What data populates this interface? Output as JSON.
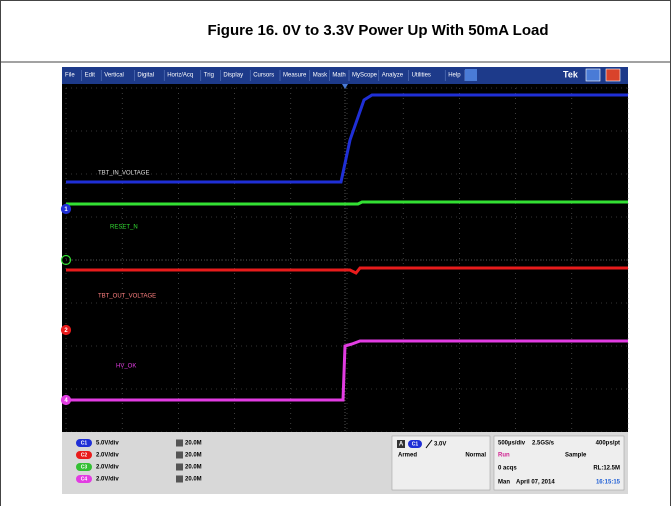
{
  "figure": {
    "title": "Figure 16. 0V to 3.3V Power Up With 50mA Load"
  },
  "menu": {
    "items": [
      "File",
      "Edit",
      "Vertical",
      "Digital",
      "Horiz/Acq",
      "Trig",
      "Display",
      "Cursors",
      "Measure",
      "Mask",
      "Math",
      "MyScope",
      "Analyze",
      "Utilities",
      "Help"
    ],
    "brand": "Tek"
  },
  "traces": [
    {
      "label": "TBT_IN_VOLTAGE",
      "marker": "1"
    },
    {
      "label": "RESET_N",
      "marker": ""
    },
    {
      "label": "TBT_OUT_VOLTAGE",
      "marker": "2"
    },
    {
      "label": "HV_OK",
      "marker": "4"
    }
  ],
  "channels": [
    {
      "name": "C1",
      "scale": "5.0V/div",
      "bandwidth": "20.0M"
    },
    {
      "name": "C2",
      "scale": "2.0V/div",
      "bandwidth": "20.0M"
    },
    {
      "name": "C3",
      "scale": "2.0V/div",
      "bandwidth": "20.0M"
    },
    {
      "name": "C4",
      "scale": "2.0V/div",
      "bandwidth": "20.0M"
    }
  ],
  "trigger": {
    "mode_letter": "A",
    "source": "C1",
    "level": "3.0V",
    "state": "Armed",
    "type": "Normal"
  },
  "status": {
    "timebase": "500µs/div",
    "sample_rate": "2.5GS/s",
    "resolution": "400ps/pt",
    "run": "Run",
    "acq_mode": "Sample",
    "acqs": "0 acqs",
    "record_length": "RL:12.5M",
    "man": "Man",
    "date": "April 07, 2014",
    "time": "16:15:15"
  }
}
